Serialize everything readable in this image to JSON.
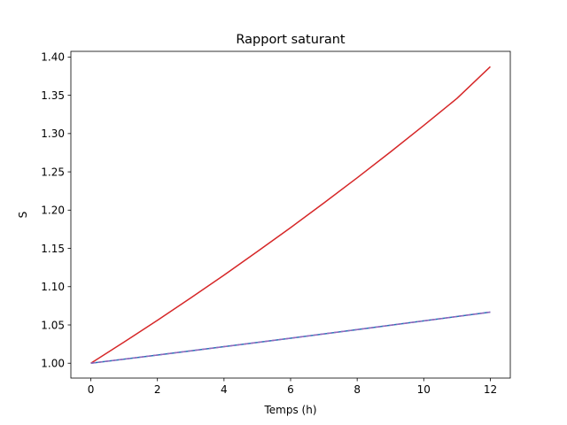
{
  "chart_data": {
    "type": "line",
    "title": "Rapport saturant",
    "xlabel": "Temps (h)",
    "ylabel": "S",
    "xlim": [
      -0.6,
      12.6
    ],
    "ylim": [
      0.9806,
      1.4074
    ],
    "xticks": [
      0,
      2,
      4,
      6,
      8,
      10,
      12
    ],
    "xtick_labels": [
      "0",
      "2",
      "4",
      "6",
      "8",
      "10",
      "12"
    ],
    "yticks": [
      1.0,
      1.05,
      1.1,
      1.15,
      1.2,
      1.25,
      1.3,
      1.35,
      1.4
    ],
    "ytick_labels": [
      "1.00",
      "1.05",
      "1.10",
      "1.15",
      "1.20",
      "1.25",
      "1.30",
      "1.35",
      "1.40"
    ],
    "grid": false,
    "legend": "none",
    "series": [
      {
        "color": "#d62728",
        "style": "solid",
        "x": [
          0,
          1,
          2,
          3,
          4,
          5,
          6,
          7,
          8,
          9,
          10,
          11,
          12
        ],
        "y": [
          1.0,
          1.0277,
          1.0561,
          1.0853,
          1.1151,
          1.1458,
          1.1771,
          1.2093,
          1.2422,
          1.276,
          1.3106,
          1.346,
          1.3874
        ]
      },
      {
        "color": "#1f77b4",
        "style": "solid",
        "x": [
          0,
          2,
          4,
          6,
          8,
          10,
          12
        ],
        "y": [
          1.0,
          1.0107,
          1.0216,
          1.0327,
          1.0439,
          1.0553,
          1.0668
        ]
      },
      {
        "color": "#9467bd",
        "style": "dashed",
        "x": [
          0,
          2,
          4,
          6,
          8,
          10,
          12
        ],
        "y": [
          1.0,
          1.0107,
          1.0216,
          1.0327,
          1.0439,
          1.0553,
          1.0668
        ]
      }
    ]
  }
}
